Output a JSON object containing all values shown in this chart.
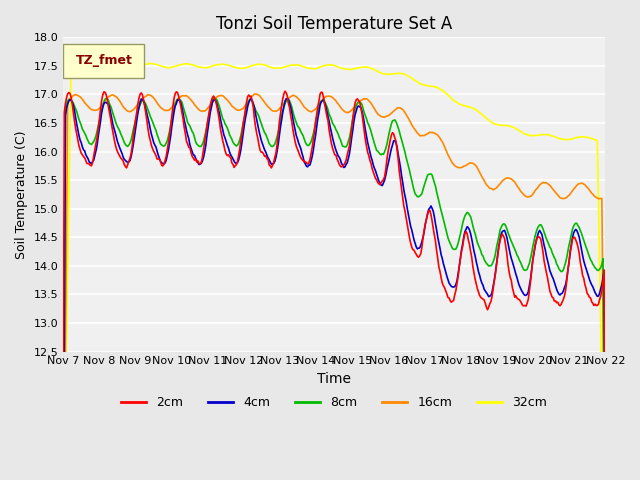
{
  "title": "Tonzi Soil Temperature Set A",
  "xlabel": "Time",
  "ylabel": "Soil Temperature (C)",
  "ylim": [
    12.5,
    18.0
  ],
  "legend_label": "TZ_fmet",
  "series_labels": [
    "2cm",
    "4cm",
    "8cm",
    "16cm",
    "32cm"
  ],
  "series_colors": [
    "#ff0000",
    "#0000cc",
    "#00bb00",
    "#ff8800",
    "#ffff00"
  ],
  "background_color": "#e8e8e8",
  "plot_background": "#f5f5f5",
  "x_tick_labels": [
    "Nov 7",
    "Nov 8",
    "Nov 9",
    "Nov 10",
    "Nov 11",
    "Nov 12",
    "Nov 13",
    "Nov 14",
    "Nov 15",
    "Nov 16",
    "Nov 17",
    "Nov 18",
    "Nov 19",
    "Nov 20",
    "Nov 21",
    "Nov 22"
  ],
  "n_days": 16,
  "n_points": 480
}
